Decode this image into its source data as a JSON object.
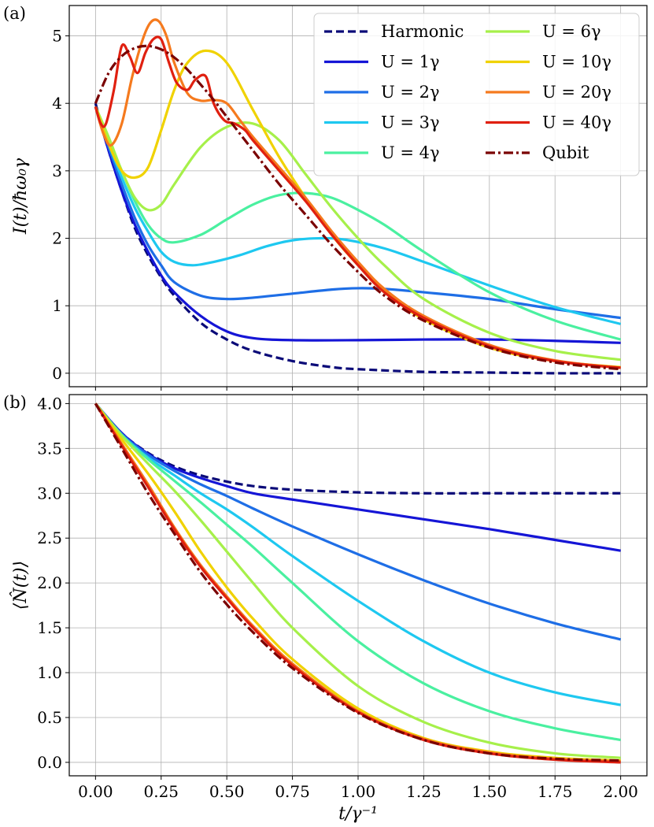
{
  "chart_data": [
    {
      "panel_label": "(a)",
      "type": "line",
      "ylabel": "I(t)/ħω₀γ",
      "xlabel": "",
      "xlim": [
        -0.1,
        2.1
      ],
      "ylim": [
        -0.2,
        5.45
      ],
      "xticks": [
        "0.00",
        "0.25",
        "0.50",
        "0.75",
        "1.00",
        "1.25",
        "1.50",
        "1.75",
        "2.00"
      ],
      "yticks": [
        "0",
        "1",
        "2",
        "3",
        "4",
        "5"
      ],
      "grid": true,
      "legend_position": "top-right",
      "series": [
        {
          "name": "Harmonic",
          "color": "#0a0a78",
          "dash": "dashed",
          "x": [
            0,
            0.05,
            0.1,
            0.15,
            0.2,
            0.25,
            0.3,
            0.4,
            0.5,
            0.6,
            0.75,
            0.9,
            1.0,
            1.25,
            1.5,
            1.75,
            2.0
          ],
          "y": [
            4.0,
            3.3,
            2.7,
            2.15,
            1.75,
            1.42,
            1.15,
            0.75,
            0.5,
            0.33,
            0.18,
            0.09,
            0.06,
            0.02,
            0.01,
            0.0,
            0.0
          ]
        },
        {
          "name": "U=1γ",
          "color": "#1515d6",
          "dash": "solid",
          "x": [
            0,
            0.05,
            0.1,
            0.15,
            0.2,
            0.25,
            0.3,
            0.4,
            0.5,
            0.6,
            0.75,
            1.0,
            1.25,
            1.5,
            1.75,
            2.0
          ],
          "y": [
            3.95,
            3.3,
            2.7,
            2.2,
            1.8,
            1.45,
            1.2,
            0.85,
            0.62,
            0.52,
            0.49,
            0.49,
            0.5,
            0.5,
            0.48,
            0.45
          ]
        },
        {
          "name": "U=2γ",
          "color": "#1e6ee6",
          "dash": "solid",
          "x": [
            0,
            0.05,
            0.1,
            0.15,
            0.2,
            0.25,
            0.3,
            0.4,
            0.5,
            0.6,
            0.75,
            0.9,
            1.0,
            1.1,
            1.25,
            1.5,
            1.75,
            2.0
          ],
          "y": [
            3.95,
            3.35,
            2.8,
            2.3,
            1.9,
            1.6,
            1.35,
            1.15,
            1.1,
            1.12,
            1.18,
            1.24,
            1.26,
            1.25,
            1.2,
            1.1,
            0.95,
            0.82
          ]
        },
        {
          "name": "U=3γ",
          "color": "#1ec8f0",
          "dash": "solid",
          "x": [
            0,
            0.05,
            0.1,
            0.15,
            0.2,
            0.25,
            0.3,
            0.37,
            0.45,
            0.55,
            0.65,
            0.75,
            0.85,
            0.95,
            1.1,
            1.25,
            1.5,
            1.75,
            2.0
          ],
          "y": [
            3.95,
            3.4,
            2.9,
            2.45,
            2.1,
            1.8,
            1.65,
            1.6,
            1.65,
            1.75,
            1.88,
            1.97,
            2.0,
            1.98,
            1.85,
            1.65,
            1.3,
            0.98,
            0.73
          ]
        },
        {
          "name": "U=4γ",
          "color": "#4af0a0",
          "dash": "solid",
          "x": [
            0,
            0.05,
            0.1,
            0.15,
            0.2,
            0.25,
            0.3,
            0.4,
            0.5,
            0.6,
            0.7,
            0.8,
            0.9,
            1.0,
            1.1,
            1.25,
            1.5,
            1.75,
            2.0
          ],
          "y": [
            3.95,
            3.45,
            3.0,
            2.55,
            2.2,
            2.0,
            1.94,
            2.05,
            2.28,
            2.5,
            2.64,
            2.67,
            2.6,
            2.42,
            2.2,
            1.8,
            1.2,
            0.78,
            0.5
          ]
        },
        {
          "name": "U=6γ",
          "color": "#a6f04a",
          "dash": "solid",
          "x": [
            0,
            0.05,
            0.1,
            0.15,
            0.2,
            0.25,
            0.3,
            0.4,
            0.5,
            0.6,
            0.7,
            0.8,
            0.9,
            1.0,
            1.1,
            1.25,
            1.5,
            1.75,
            2.0
          ],
          "y": [
            3.95,
            3.5,
            3.0,
            2.6,
            2.42,
            2.5,
            2.8,
            3.35,
            3.65,
            3.7,
            3.45,
            2.95,
            2.45,
            2.0,
            1.6,
            1.1,
            0.6,
            0.33,
            0.2
          ]
        },
        {
          "name": "U=10γ",
          "color": "#f0d200",
          "dash": "solid",
          "x": [
            0,
            0.05,
            0.1,
            0.15,
            0.2,
            0.25,
            0.3,
            0.35,
            0.42,
            0.5,
            0.6,
            0.7,
            0.8,
            0.9,
            1.0,
            1.1,
            1.25,
            1.5,
            1.75,
            2.0
          ],
          "y": [
            3.95,
            3.4,
            3.0,
            2.9,
            3.05,
            3.6,
            4.2,
            4.6,
            4.78,
            4.6,
            3.9,
            3.2,
            2.6,
            2.05,
            1.6,
            1.22,
            0.8,
            0.38,
            0.18,
            0.09
          ]
        },
        {
          "name": "U=20γ",
          "color": "#f57a1e",
          "dash": "solid",
          "x": [
            0,
            0.03,
            0.06,
            0.1,
            0.14,
            0.18,
            0.21,
            0.24,
            0.27,
            0.3,
            0.35,
            0.4,
            0.45,
            0.5,
            0.55,
            0.6,
            0.7,
            0.8,
            0.9,
            1.0,
            1.1,
            1.25,
            1.5,
            1.75,
            2.0
          ],
          "y": [
            3.95,
            3.55,
            3.38,
            3.7,
            4.4,
            4.95,
            5.2,
            5.22,
            5.0,
            4.6,
            4.15,
            4.04,
            4.05,
            4.0,
            3.75,
            3.5,
            3.05,
            2.6,
            2.1,
            1.65,
            1.25,
            0.85,
            0.42,
            0.19,
            0.08
          ]
        },
        {
          "name": "U=40γ",
          "color": "#e02010",
          "dash": "solid",
          "x": [
            0,
            0.02,
            0.04,
            0.07,
            0.1,
            0.13,
            0.16,
            0.19,
            0.22,
            0.25,
            0.28,
            0.31,
            0.35,
            0.38,
            0.42,
            0.45,
            0.49,
            0.53,
            0.57,
            0.6,
            0.7,
            0.8,
            0.9,
            1.0,
            1.1,
            1.25,
            1.5,
            1.75,
            2.0
          ],
          "y": [
            3.95,
            3.7,
            3.7,
            4.2,
            4.85,
            4.7,
            4.45,
            4.75,
            4.95,
            4.95,
            4.6,
            4.3,
            4.2,
            4.35,
            4.4,
            4.0,
            3.75,
            3.7,
            3.6,
            3.45,
            3.0,
            2.55,
            2.05,
            1.6,
            1.2,
            0.82,
            0.4,
            0.18,
            0.08
          ]
        },
        {
          "name": "Qubit",
          "color": "#7a0000",
          "dash": "dashdot",
          "x": [
            0,
            0.05,
            0.1,
            0.15,
            0.2,
            0.25,
            0.3,
            0.35,
            0.4,
            0.45,
            0.5,
            0.6,
            0.7,
            0.8,
            0.9,
            1.0,
            1.1,
            1.25,
            1.5,
            1.75,
            2.0
          ],
          "y": [
            4.0,
            4.45,
            4.7,
            4.82,
            4.85,
            4.8,
            4.68,
            4.5,
            4.28,
            4.05,
            3.8,
            3.3,
            2.8,
            2.35,
            1.9,
            1.5,
            1.15,
            0.78,
            0.38,
            0.16,
            0.06
          ]
        }
      ],
      "legend": {
        "column1": [
          "Harmonic",
          "U = 1γ",
          "U = 2γ",
          "U = 3γ",
          "U = 4γ"
        ],
        "column2": [
          "U = 6γ",
          "U = 10γ",
          "U = 20γ",
          "U = 40γ",
          "Qubit"
        ]
      }
    },
    {
      "panel_label": "(b)",
      "type": "line",
      "ylabel": "⟨N̂(t)⟩",
      "xlabel": "t/γ⁻¹",
      "xlim": [
        -0.1,
        2.1
      ],
      "ylim": [
        -0.15,
        4.1
      ],
      "xticks": [
        "0.00",
        "0.25",
        "0.50",
        "0.75",
        "1.00",
        "1.25",
        "1.50",
        "1.75",
        "2.00"
      ],
      "yticks": [
        "0.0",
        "0.5",
        "1.0",
        "1.5",
        "2.0",
        "2.5",
        "3.0",
        "3.5",
        "4.0"
      ],
      "grid": true,
      "series": [
        {
          "name": "Harmonic",
          "color": "#0a0a78",
          "dash": "dashed",
          "x": [
            0,
            0.1,
            0.2,
            0.3,
            0.4,
            0.5,
            0.6,
            0.75,
            1.0,
            1.25,
            1.5,
            1.75,
            2.0
          ],
          "y": [
            4.0,
            3.67,
            3.45,
            3.3,
            3.2,
            3.13,
            3.08,
            3.04,
            3.01,
            3.0,
            3.0,
            3.0,
            3.0
          ]
        },
        {
          "name": "U=1γ",
          "color": "#1515d6",
          "dash": "solid",
          "x": [
            0,
            0.1,
            0.2,
            0.3,
            0.4,
            0.5,
            0.6,
            0.75,
            1.0,
            1.25,
            1.5,
            1.75,
            2.0
          ],
          "y": [
            4.0,
            3.67,
            3.44,
            3.28,
            3.17,
            3.08,
            3.0,
            2.93,
            2.82,
            2.71,
            2.6,
            2.48,
            2.36
          ]
        },
        {
          "name": "U=2γ",
          "color": "#1e6ee6",
          "dash": "solid",
          "x": [
            0,
            0.1,
            0.2,
            0.3,
            0.4,
            0.5,
            0.6,
            0.75,
            1.0,
            1.25,
            1.5,
            1.75,
            2.0
          ],
          "y": [
            4.0,
            3.66,
            3.43,
            3.25,
            3.1,
            2.97,
            2.83,
            2.63,
            2.32,
            2.03,
            1.77,
            1.55,
            1.37
          ]
        },
        {
          "name": "U=3γ",
          "color": "#1ec8f0",
          "dash": "solid",
          "x": [
            0,
            0.1,
            0.2,
            0.3,
            0.4,
            0.5,
            0.6,
            0.75,
            1.0,
            1.25,
            1.5,
            1.75,
            2.0
          ],
          "y": [
            4.0,
            3.65,
            3.4,
            3.2,
            3.0,
            2.82,
            2.62,
            2.3,
            1.8,
            1.35,
            1.0,
            0.78,
            0.64
          ]
        },
        {
          "name": "U=4γ",
          "color": "#4af0a0",
          "dash": "solid",
          "x": [
            0,
            0.1,
            0.2,
            0.3,
            0.4,
            0.5,
            0.6,
            0.75,
            1.0,
            1.25,
            1.5,
            1.75,
            2.0
          ],
          "y": [
            4.0,
            3.65,
            3.38,
            3.14,
            2.9,
            2.65,
            2.4,
            2.0,
            1.35,
            0.88,
            0.57,
            0.38,
            0.25
          ]
        },
        {
          "name": "U=6γ",
          "color": "#a6f04a",
          "dash": "solid",
          "x": [
            0,
            0.1,
            0.2,
            0.3,
            0.4,
            0.5,
            0.6,
            0.75,
            1.0,
            1.25,
            1.5,
            1.75,
            2.0
          ],
          "y": [
            4.0,
            3.64,
            3.33,
            3.03,
            2.7,
            2.35,
            2.0,
            1.5,
            0.85,
            0.45,
            0.22,
            0.1,
            0.05
          ]
        },
        {
          "name": "U=10γ",
          "color": "#f0d200",
          "dash": "solid",
          "x": [
            0,
            0.1,
            0.2,
            0.3,
            0.4,
            0.5,
            0.6,
            0.75,
            1.0,
            1.25,
            1.5,
            1.75,
            2.0
          ],
          "y": [
            4.0,
            3.6,
            3.22,
            2.8,
            2.35,
            1.95,
            1.6,
            1.15,
            0.6,
            0.27,
            0.12,
            0.05,
            0.02
          ]
        },
        {
          "name": "U=20γ",
          "color": "#f57a1e",
          "dash": "solid",
          "x": [
            0,
            0.1,
            0.2,
            0.3,
            0.4,
            0.5,
            0.6,
            0.75,
            1.0,
            1.25,
            1.5,
            1.75,
            2.0
          ],
          "y": [
            4.0,
            3.55,
            3.1,
            2.62,
            2.2,
            1.85,
            1.52,
            1.1,
            0.57,
            0.26,
            0.11,
            0.04,
            0.01
          ]
        },
        {
          "name": "U=40γ",
          "color": "#e02010",
          "dash": "solid",
          "x": [
            0,
            0.1,
            0.2,
            0.3,
            0.4,
            0.5,
            0.6,
            0.75,
            1.0,
            1.25,
            1.5,
            1.75,
            2.0
          ],
          "y": [
            4.0,
            3.53,
            3.07,
            2.6,
            2.18,
            1.83,
            1.5,
            1.08,
            0.56,
            0.25,
            0.1,
            0.03,
            0.0
          ]
        },
        {
          "name": "Qubit",
          "color": "#7a0000",
          "dash": "dashdot",
          "x": [
            0,
            0.1,
            0.2,
            0.3,
            0.4,
            0.5,
            0.6,
            0.75,
            1.0,
            1.25,
            1.5,
            1.75,
            2.0
          ],
          "y": [
            4.0,
            3.5,
            3.0,
            2.55,
            2.12,
            1.76,
            1.45,
            1.05,
            0.55,
            0.25,
            0.1,
            0.04,
            0.02
          ]
        }
      ]
    }
  ]
}
